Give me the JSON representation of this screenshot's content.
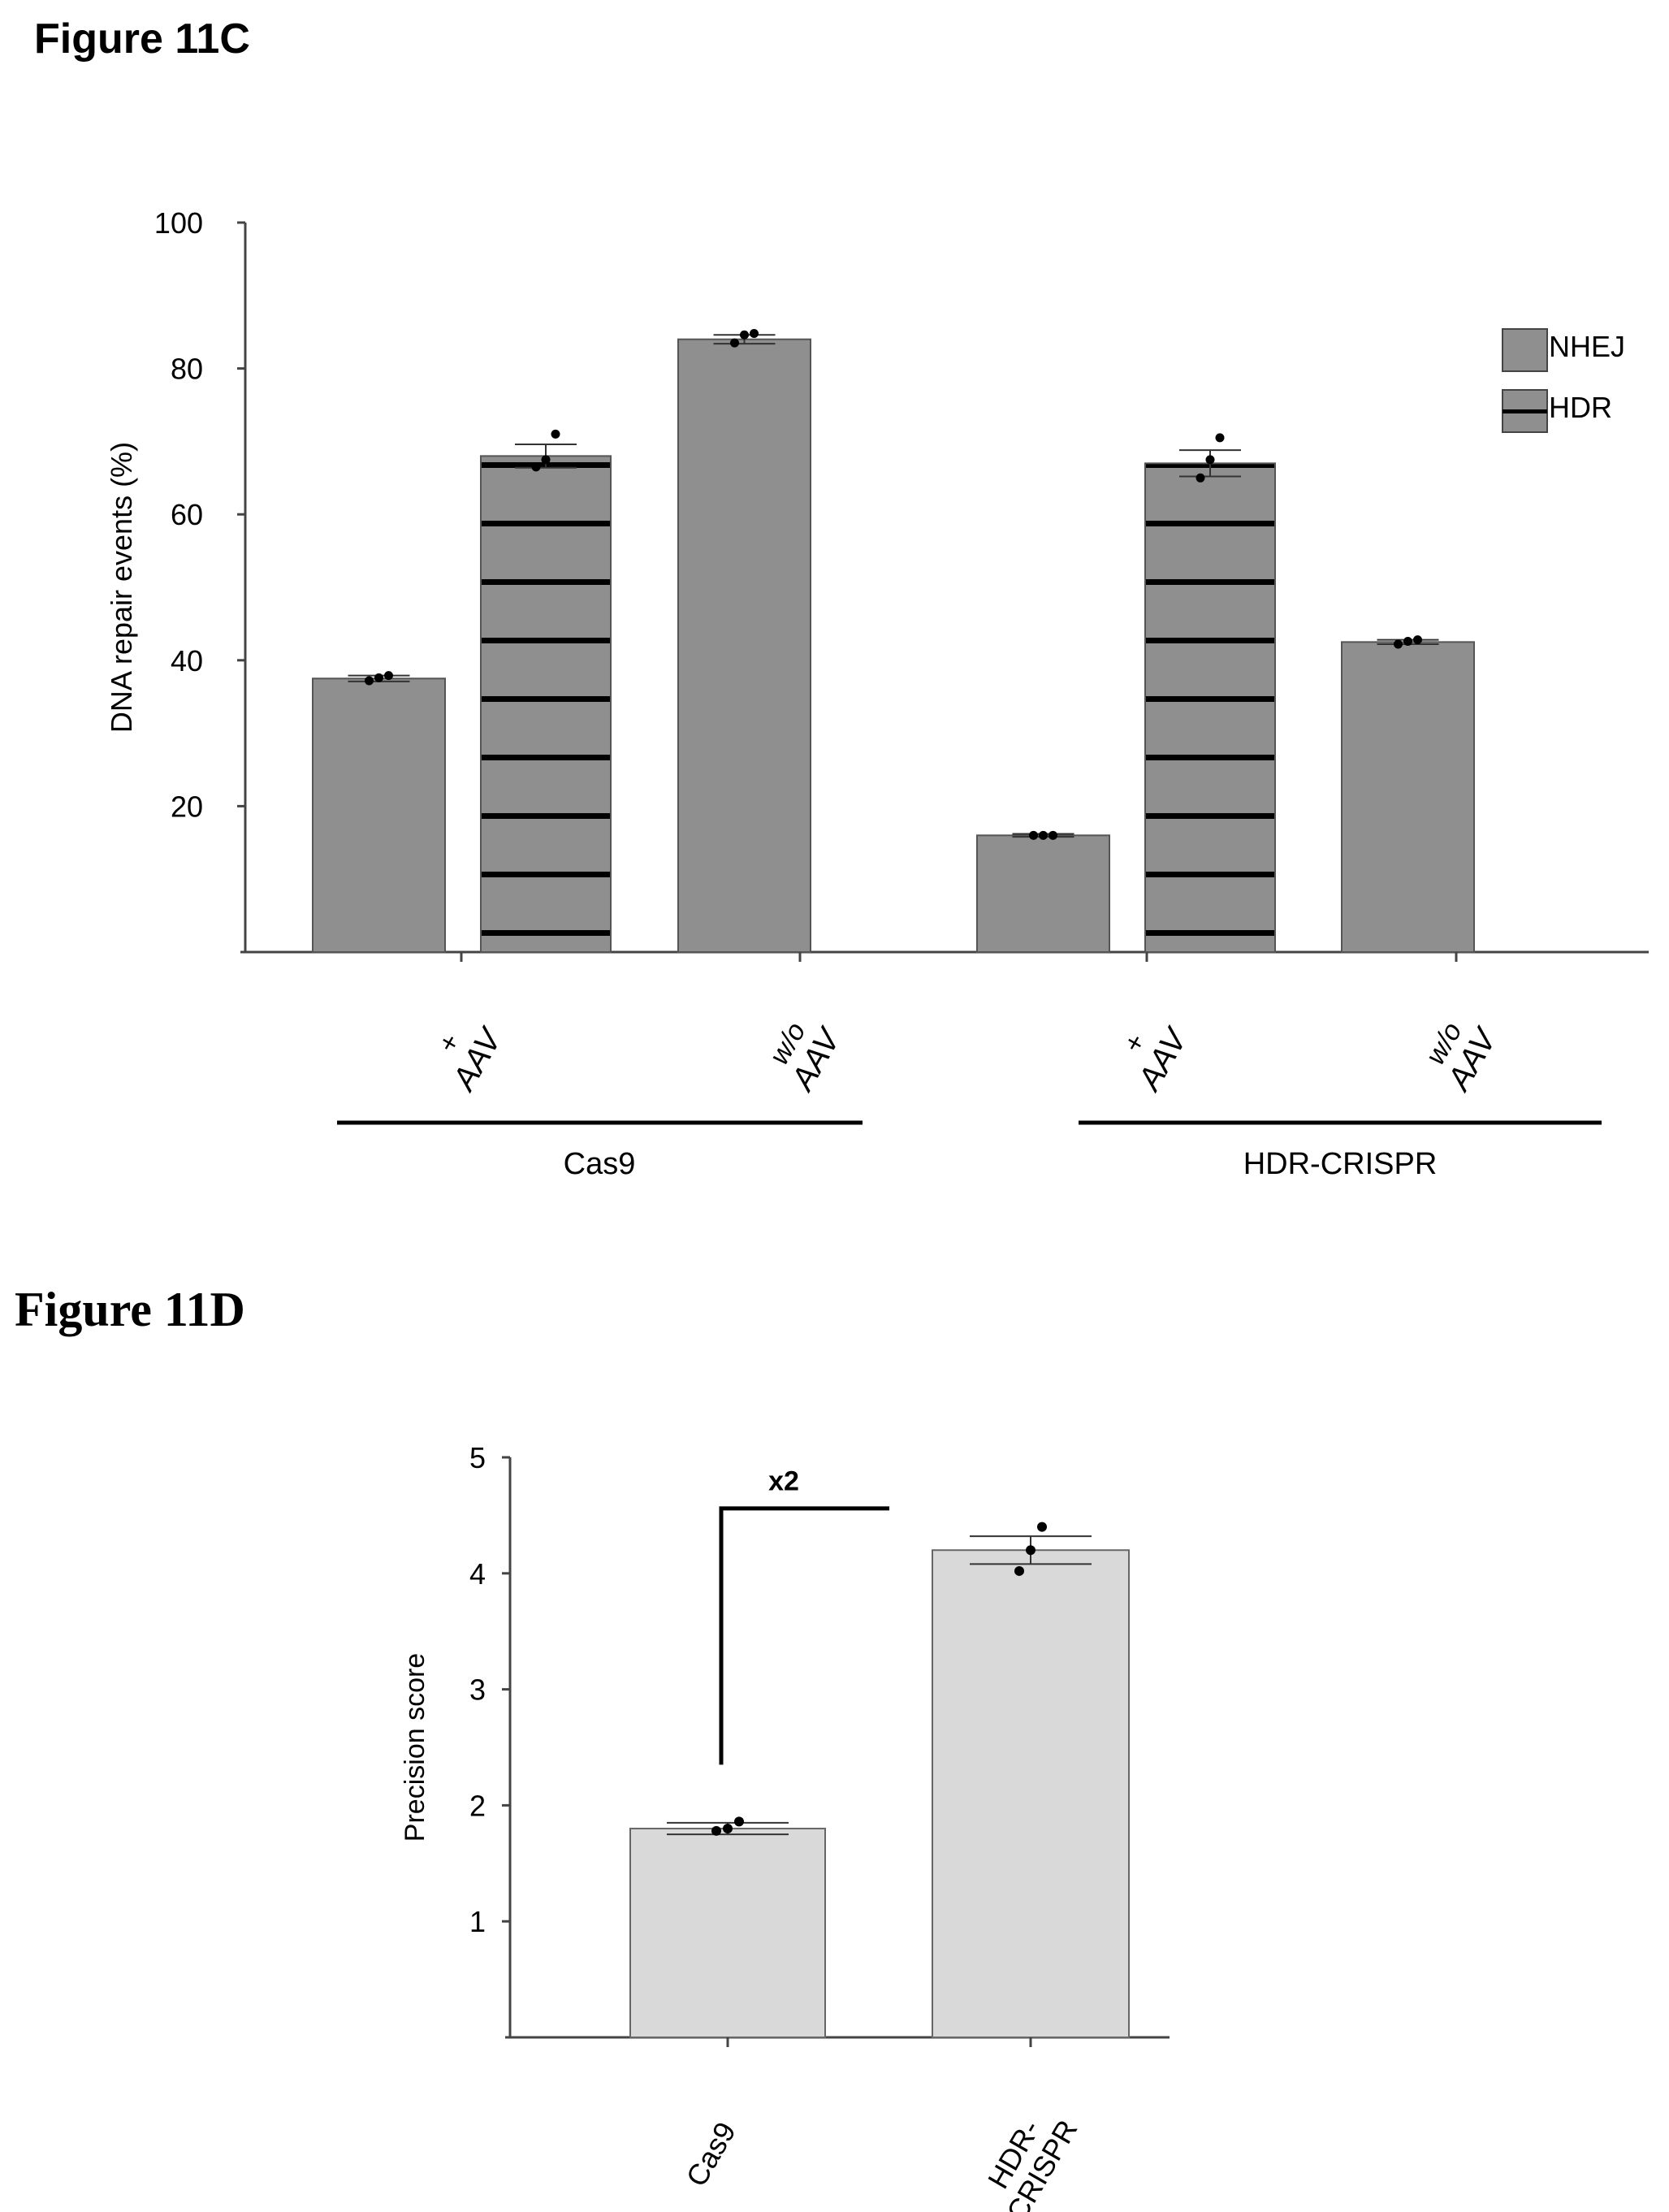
{
  "panel_c": {
    "title": "Figure 11C",
    "chart_data": {
      "type": "bar",
      "ylabel": "DNA repair events (%)",
      "xlabel": "",
      "ylim": [
        0,
        100
      ],
      "yticks": [
        20,
        40,
        60,
        80,
        100
      ],
      "groups": [
        {
          "name": "Cas9",
          "conditions": [
            {
              "label_top": "+",
              "label_bottom": "AAV",
              "bars": [
                {
                  "series": "NHEJ",
                  "value": 37.5,
                  "points": [
                    37.2,
                    37.6,
                    37.9
                  ],
                  "err": 0.4
                },
                {
                  "series": "HDR",
                  "value": 68,
                  "points": [
                    66.5,
                    67.5,
                    71
                  ],
                  "err": 1.6
                }
              ]
            },
            {
              "label_top": "w/o",
              "label_bottom": "AAV",
              "bars": [
                {
                  "series": "NHEJ",
                  "value": 84,
                  "points": [
                    83.5,
                    84.6,
                    84.8
                  ],
                  "err": 0.6
                }
              ]
            }
          ]
        },
        {
          "name": "HDR-CRISPR",
          "conditions": [
            {
              "label_top": "+",
              "label_bottom": "AAV",
              "bars": [
                {
                  "series": "NHEJ",
                  "value": 16,
                  "points": [
                    16,
                    16,
                    16
                  ],
                  "err": 0.2
                },
                {
                  "series": "HDR",
                  "value": 67,
                  "points": [
                    65,
                    67.5,
                    70.5
                  ],
                  "err": 1.8
                }
              ]
            },
            {
              "label_top": "w/o",
              "label_bottom": "AAV",
              "bars": [
                {
                  "series": "NHEJ",
                  "value": 42.5,
                  "points": [
                    42.2,
                    42.6,
                    42.8
                  ],
                  "err": 0.3
                }
              ]
            }
          ]
        }
      ],
      "legend": {
        "placement": "top-right",
        "items": [
          {
            "name": "NHEJ",
            "pattern": "solid"
          },
          {
            "name": "HDR",
            "pattern": "striped"
          }
        ]
      }
    }
  },
  "panel_d": {
    "title": "Figure 11D",
    "chart_data": {
      "type": "bar",
      "categories": [
        "Cas9",
        "HDR-CRISPR"
      ],
      "category_lines": [
        [
          "Cas9"
        ],
        [
          "HDR-",
          "CRISPR"
        ]
      ],
      "values": [
        1.8,
        4.2
      ],
      "points": [
        [
          1.78,
          1.8,
          1.86
        ],
        [
          4.02,
          4.2,
          4.4
        ]
      ],
      "errors": [
        0.05,
        0.12
      ],
      "ylabel": "Precision score",
      "xlabel": "",
      "ylim": [
        0,
        5
      ],
      "yticks": [
        1,
        2,
        3,
        4,
        5
      ],
      "annotation": "x2"
    }
  },
  "colors": {
    "bar_c": "#8f8f8f",
    "bar_d": "#d9d9d9",
    "stripe": "#000000",
    "axis": "#444444"
  }
}
